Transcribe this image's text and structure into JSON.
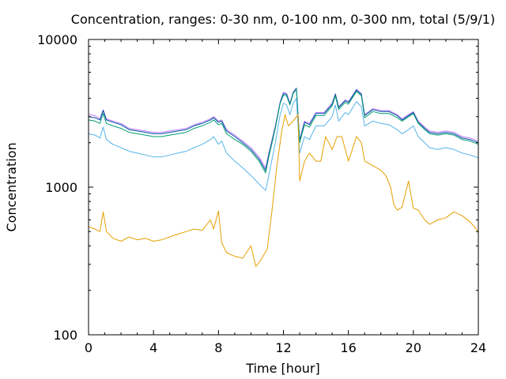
{
  "chart_data": {
    "type": "line",
    "title": "Concentration, ranges: 0-30 nm, 0-100 nm, 0-300 nm, total (5/9/1)",
    "xlabel": "Time [hour]",
    "ylabel": "Concentration",
    "xlim": [
      0,
      24
    ],
    "ylim": [
      100,
      10000
    ],
    "yscale": "log",
    "grid": false,
    "legend": "none",
    "x_ticks": [
      0,
      4,
      8,
      12,
      16,
      20,
      24
    ],
    "x_tick_labels": [
      "0",
      "4",
      "8",
      "12",
      "16",
      "20",
      "24"
    ],
    "y_ticks": [
      100,
      1000,
      10000
    ],
    "y_tick_labels": [
      "100",
      "1000",
      "10000"
    ],
    "series": [
      {
        "color": "#c080ff",
        "points": [
          [
            0,
            3100
          ],
          [
            0.4,
            3050
          ],
          [
            0.7,
            2900
          ],
          [
            0.9,
            3350
          ],
          [
            1.1,
            2900
          ],
          [
            1.5,
            2800
          ],
          [
            2,
            2700
          ],
          [
            2.5,
            2500
          ],
          [
            3,
            2450
          ],
          [
            3.5,
            2400
          ],
          [
            4,
            2350
          ],
          [
            4.5,
            2350
          ],
          [
            5,
            2400
          ],
          [
            5.5,
            2450
          ],
          [
            6,
            2500
          ],
          [
            6.5,
            2650
          ],
          [
            7,
            2750
          ],
          [
            7.5,
            2900
          ],
          [
            7.7,
            3000
          ],
          [
            8,
            2800
          ],
          [
            8.2,
            2850
          ],
          [
            8.5,
            2450
          ],
          [
            9,
            2250
          ],
          [
            9.5,
            2050
          ],
          [
            10,
            1850
          ],
          [
            10.5,
            1600
          ],
          [
            10.9,
            1350
          ],
          [
            11.1,
            1700
          ],
          [
            11.5,
            2600
          ],
          [
            11.8,
            3800
          ],
          [
            12,
            4400
          ],
          [
            12.2,
            4300
          ],
          [
            12.4,
            3700
          ],
          [
            12.6,
            4400
          ],
          [
            12.8,
            4700
          ],
          [
            13,
            2100
          ],
          [
            13.3,
            2800
          ],
          [
            13.6,
            2700
          ],
          [
            14,
            3200
          ],
          [
            14.5,
            3200
          ],
          [
            15,
            3700
          ],
          [
            15.2,
            4300
          ],
          [
            15.4,
            3500
          ],
          [
            15.8,
            3900
          ],
          [
            16,
            3800
          ],
          [
            16.5,
            4600
          ],
          [
            16.8,
            4300
          ],
          [
            17,
            3100
          ],
          [
            17.5,
            3400
          ],
          [
            18,
            3300
          ],
          [
            18.5,
            3300
          ],
          [
            19,
            3100
          ],
          [
            19.3,
            2900
          ],
          [
            19.7,
            3100
          ],
          [
            20,
            3250
          ],
          [
            20.3,
            2800
          ],
          [
            20.7,
            2550
          ],
          [
            21,
            2400
          ],
          [
            21.5,
            2350
          ],
          [
            22,
            2400
          ],
          [
            22.5,
            2350
          ],
          [
            23,
            2200
          ],
          [
            23.5,
            2150
          ],
          [
            24,
            2050
          ]
        ]
      },
      {
        "color": "#0050a0",
        "points": [
          [
            0,
            3000
          ],
          [
            0.4,
            2950
          ],
          [
            0.7,
            2850
          ],
          [
            0.9,
            3300
          ],
          [
            1.1,
            2850
          ],
          [
            1.5,
            2750
          ],
          [
            2,
            2650
          ],
          [
            2.5,
            2450
          ],
          [
            3,
            2400
          ],
          [
            3.5,
            2350
          ],
          [
            4,
            2300
          ],
          [
            4.5,
            2300
          ],
          [
            5,
            2350
          ],
          [
            5.5,
            2400
          ],
          [
            6,
            2450
          ],
          [
            6.5,
            2600
          ],
          [
            7,
            2700
          ],
          [
            7.5,
            2850
          ],
          [
            7.7,
            2950
          ],
          [
            8,
            2750
          ],
          [
            8.2,
            2800
          ],
          [
            8.5,
            2400
          ],
          [
            9,
            2200
          ],
          [
            9.5,
            2000
          ],
          [
            10,
            1800
          ],
          [
            10.5,
            1550
          ],
          [
            10.9,
            1300
          ],
          [
            11.1,
            1650
          ],
          [
            11.5,
            2550
          ],
          [
            11.8,
            3750
          ],
          [
            12,
            4300
          ],
          [
            12.2,
            4250
          ],
          [
            12.4,
            3650
          ],
          [
            12.6,
            4350
          ],
          [
            12.8,
            4650
          ],
          [
            13,
            2050
          ],
          [
            13.3,
            2750
          ],
          [
            13.6,
            2650
          ],
          [
            14,
            3150
          ],
          [
            14.5,
            3150
          ],
          [
            15,
            3650
          ],
          [
            15.2,
            4250
          ],
          [
            15.4,
            3450
          ],
          [
            15.8,
            3850
          ],
          [
            16,
            3750
          ],
          [
            16.5,
            4550
          ],
          [
            16.8,
            4250
          ],
          [
            17,
            3050
          ],
          [
            17.5,
            3350
          ],
          [
            18,
            3250
          ],
          [
            18.5,
            3250
          ],
          [
            19,
            3050
          ],
          [
            19.3,
            2850
          ],
          [
            19.7,
            3050
          ],
          [
            20,
            3200
          ],
          [
            20.3,
            2750
          ],
          [
            20.7,
            2500
          ],
          [
            21,
            2350
          ],
          [
            21.5,
            2300
          ],
          [
            22,
            2350
          ],
          [
            22.5,
            2300
          ],
          [
            23,
            2150
          ],
          [
            23.5,
            2100
          ],
          [
            24,
            2000
          ]
        ]
      },
      {
        "color": "#009e73",
        "points": [
          [
            0,
            2850
          ],
          [
            0.4,
            2800
          ],
          [
            0.7,
            2700
          ],
          [
            0.9,
            3150
          ],
          [
            1.1,
            2700
          ],
          [
            1.5,
            2600
          ],
          [
            2,
            2500
          ],
          [
            2.5,
            2350
          ],
          [
            3,
            2300
          ],
          [
            3.5,
            2250
          ],
          [
            4,
            2200
          ],
          [
            4.5,
            2200
          ],
          [
            5,
            2250
          ],
          [
            5.5,
            2300
          ],
          [
            6,
            2350
          ],
          [
            6.5,
            2500
          ],
          [
            7,
            2600
          ],
          [
            7.5,
            2750
          ],
          [
            7.7,
            2850
          ],
          [
            8,
            2650
          ],
          [
            8.2,
            2700
          ],
          [
            8.5,
            2300
          ],
          [
            9,
            2100
          ],
          [
            9.5,
            1950
          ],
          [
            10,
            1750
          ],
          [
            10.5,
            1500
          ],
          [
            10.9,
            1250
          ],
          [
            11.1,
            1600
          ],
          [
            11.5,
            2500
          ],
          [
            11.8,
            3700
          ],
          [
            12,
            4200
          ],
          [
            12.2,
            4150
          ],
          [
            12.4,
            3600
          ],
          [
            12.6,
            4300
          ],
          [
            12.8,
            4600
          ],
          [
            13,
            2000
          ],
          [
            13.3,
            2650
          ],
          [
            13.6,
            2550
          ],
          [
            14,
            3050
          ],
          [
            14.5,
            3050
          ],
          [
            15,
            3550
          ],
          [
            15.2,
            4150
          ],
          [
            15.4,
            3350
          ],
          [
            15.8,
            3750
          ],
          [
            16,
            3650
          ],
          [
            16.5,
            4450
          ],
          [
            16.8,
            4150
          ],
          [
            17,
            2950
          ],
          [
            17.5,
            3250
          ],
          [
            18,
            3150
          ],
          [
            18.5,
            3150
          ],
          [
            19,
            2950
          ],
          [
            19.3,
            2800
          ],
          [
            19.7,
            3000
          ],
          [
            20,
            3150
          ],
          [
            20.3,
            2700
          ],
          [
            20.7,
            2450
          ],
          [
            21,
            2300
          ],
          [
            21.5,
            2250
          ],
          [
            22,
            2300
          ],
          [
            22.5,
            2250
          ],
          [
            23,
            2100
          ],
          [
            23.5,
            2050
          ],
          [
            24,
            1950
          ]
        ]
      },
      {
        "color": "#56b4e9",
        "points": [
          [
            0,
            2300
          ],
          [
            0.4,
            2250
          ],
          [
            0.7,
            2150
          ],
          [
            0.9,
            2550
          ],
          [
            1.1,
            2100
          ],
          [
            1.5,
            1950
          ],
          [
            2,
            1850
          ],
          [
            2.5,
            1750
          ],
          [
            3,
            1700
          ],
          [
            3.5,
            1650
          ],
          [
            4,
            1600
          ],
          [
            4.5,
            1600
          ],
          [
            5,
            1650
          ],
          [
            5.5,
            1700
          ],
          [
            6,
            1750
          ],
          [
            6.5,
            1850
          ],
          [
            7,
            1950
          ],
          [
            7.5,
            2100
          ],
          [
            7.7,
            2200
          ],
          [
            8,
            1950
          ],
          [
            8.2,
            2050
          ],
          [
            8.5,
            1700
          ],
          [
            9,
            1500
          ],
          [
            9.5,
            1350
          ],
          [
            10,
            1200
          ],
          [
            10.5,
            1050
          ],
          [
            10.9,
            950
          ],
          [
            11.1,
            1200
          ],
          [
            11.5,
            2000
          ],
          [
            11.8,
            3100
          ],
          [
            12,
            3700
          ],
          [
            12.2,
            3600
          ],
          [
            12.4,
            3100
          ],
          [
            12.6,
            3700
          ],
          [
            12.8,
            4000
          ],
          [
            13,
            1700
          ],
          [
            13.3,
            2200
          ],
          [
            13.6,
            2100
          ],
          [
            14,
            2600
          ],
          [
            14.5,
            2600
          ],
          [
            15,
            3000
          ],
          [
            15.2,
            3600
          ],
          [
            15.4,
            2800
          ],
          [
            15.8,
            3200
          ],
          [
            16,
            3100
          ],
          [
            16.5,
            3800
          ],
          [
            16.8,
            3500
          ],
          [
            17,
            2600
          ],
          [
            17.5,
            2800
          ],
          [
            18,
            2700
          ],
          [
            18.5,
            2650
          ],
          [
            19,
            2450
          ],
          [
            19.3,
            2300
          ],
          [
            19.7,
            2450
          ],
          [
            20,
            2600
          ],
          [
            20.3,
            2200
          ],
          [
            20.7,
            2000
          ],
          [
            21,
            1850
          ],
          [
            21.5,
            1800
          ],
          [
            22,
            1850
          ],
          [
            22.5,
            1800
          ],
          [
            23,
            1700
          ],
          [
            23.5,
            1650
          ],
          [
            24,
            1580
          ]
        ]
      },
      {
        "color": "#e69f00",
        "points": [
          [
            0,
            540
          ],
          [
            0.4,
            520
          ],
          [
            0.7,
            500
          ],
          [
            0.9,
            680
          ],
          [
            1.1,
            500
          ],
          [
            1.5,
            450
          ],
          [
            2,
            430
          ],
          [
            2.5,
            460
          ],
          [
            3,
            440
          ],
          [
            3.5,
            450
          ],
          [
            4,
            430
          ],
          [
            4.5,
            440
          ],
          [
            5,
            460
          ],
          [
            5.5,
            480
          ],
          [
            6,
            500
          ],
          [
            6.5,
            520
          ],
          [
            7,
            510
          ],
          [
            7.5,
            600
          ],
          [
            7.7,
            520
          ],
          [
            8,
            690
          ],
          [
            8.2,
            420
          ],
          [
            8.5,
            360
          ],
          [
            9,
            340
          ],
          [
            9.5,
            330
          ],
          [
            10,
            400
          ],
          [
            10.3,
            290
          ],
          [
            10.6,
            320
          ],
          [
            11,
            380
          ],
          [
            11.3,
            700
          ],
          [
            11.6,
            1400
          ],
          [
            11.9,
            2400
          ],
          [
            12.1,
            3100
          ],
          [
            12.3,
            2600
          ],
          [
            12.6,
            2800
          ],
          [
            12.9,
            3100
          ],
          [
            13,
            1100
          ],
          [
            13.3,
            1500
          ],
          [
            13.6,
            1700
          ],
          [
            14,
            1500
          ],
          [
            14.3,
            1500
          ],
          [
            14.6,
            2200
          ],
          [
            15,
            1800
          ],
          [
            15.3,
            2200
          ],
          [
            15.6,
            2200
          ],
          [
            16,
            1500
          ],
          [
            16.5,
            2200
          ],
          [
            16.8,
            2000
          ],
          [
            17,
            1500
          ],
          [
            17.5,
            1400
          ],
          [
            18,
            1300
          ],
          [
            18.3,
            1200
          ],
          [
            18.6,
            1000
          ],
          [
            18.8,
            760
          ],
          [
            19,
            700
          ],
          [
            19.3,
            730
          ],
          [
            19.7,
            1100
          ],
          [
            20,
            720
          ],
          [
            20.3,
            700
          ],
          [
            20.7,
            600
          ],
          [
            21,
            560
          ],
          [
            21.5,
            600
          ],
          [
            22,
            620
          ],
          [
            22.5,
            680
          ],
          [
            23,
            640
          ],
          [
            23.5,
            580
          ],
          [
            24,
            500
          ]
        ]
      }
    ]
  }
}
